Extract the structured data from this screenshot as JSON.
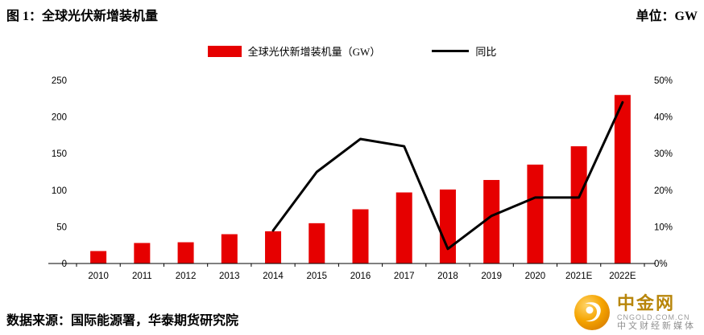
{
  "header": {
    "title": "图 1：全球光伏新增装机量",
    "unit": "单位：GW"
  },
  "legend": {
    "bar": "全球光伏新增装机量（GW）",
    "line": "同比"
  },
  "chart_data": {
    "type": "bar",
    "categories": [
      "2010",
      "2011",
      "2012",
      "2013",
      "2014",
      "2015",
      "2016",
      "2017",
      "2018",
      "2019",
      "2020",
      "2021E",
      "2022E"
    ],
    "series": [
      {
        "name": "全球光伏新增装机量（GW）",
        "type": "bar",
        "axis": "left",
        "color": "#e60000",
        "values": [
          17,
          28,
          29,
          40,
          44,
          55,
          74,
          97,
          101,
          114,
          135,
          160,
          230
        ]
      },
      {
        "name": "同比",
        "type": "line",
        "axis": "right",
        "color": "#000000",
        "values": [
          null,
          null,
          null,
          null,
          9,
          25,
          34,
          32,
          4,
          13,
          18,
          18,
          44
        ]
      }
    ],
    "left_axis": {
      "min": 0,
      "max": 250,
      "step": 50,
      "ticks": [
        "0",
        "50",
        "100",
        "150",
        "200",
        "250"
      ]
    },
    "right_axis": {
      "min": 0,
      "max": 50,
      "step": 10,
      "ticks": [
        "0%",
        "10%",
        "20%",
        "30%",
        "40%",
        "50%"
      ]
    },
    "grid": false,
    "legend_position": "top",
    "title": "全球光伏新增装机量",
    "xlabel": "",
    "ylabel_left": "GW",
    "ylabel_right": "同比(%)"
  },
  "footer": {
    "source": "数据来源：国际能源署，华泰期货研究院"
  },
  "watermark": {
    "name": "中金网",
    "domain": "CNGOLD.COM.CN",
    "tagline": "中文财经新媒体",
    "logo_color": "#f09c00"
  }
}
